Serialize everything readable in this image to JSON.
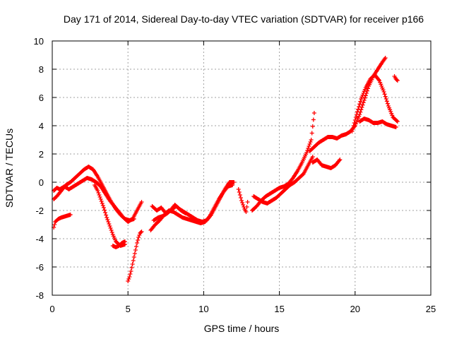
{
  "chart_data": {
    "type": "scatter",
    "title": "Day 171 of 2014, Sidereal Day-to-day VTEC variation (SDTVAR) for receiver p166",
    "xlabel": "GPS time / hours",
    "ylabel": "SDTVAR / TECUs",
    "xlim": [
      0,
      25
    ],
    "ylim": [
      -8,
      10
    ],
    "xticks": [
      "0",
      "5",
      "10",
      "15",
      "20",
      "25"
    ],
    "yticks": [
      "-8",
      "-6",
      "-4",
      "-2",
      "0",
      "2",
      "4",
      "6",
      "8",
      "10"
    ],
    "grid": true,
    "marker": "plus",
    "color": "#ff0000",
    "series": [
      {
        "x": [
          0.1,
          0.3,
          0.5,
          0.8,
          1.1,
          1.4,
          1.7,
          2.0,
          2.3,
          2.6,
          2.9,
          3.2,
          3.5,
          3.8,
          4.1,
          4.4,
          4.7,
          5.0,
          5.3,
          5.6,
          5.9
        ],
        "y": [
          -0.6,
          -0.4,
          -0.5,
          -0.3,
          -0.5,
          -0.3,
          -0.1,
          0.1,
          0.3,
          0.2,
          0.0,
          -0.3,
          -0.8,
          -1.3,
          -1.7,
          -2.1,
          -2.5,
          -2.8,
          -2.6,
          -2.0,
          -1.4
        ]
      },
      {
        "x": [
          0.1,
          0.3,
          0.6,
          0.9,
          1.2,
          1.5,
          1.8,
          2.1,
          2.4,
          2.7,
          3.0,
          3.3,
          3.6,
          3.9,
          4.2,
          4.5,
          4.8,
          5.1,
          5.4
        ],
        "y": [
          -1.2,
          -1.0,
          -0.6,
          -0.2,
          0.0,
          0.3,
          0.6,
          0.9,
          1.1,
          0.9,
          0.4,
          -0.2,
          -0.8,
          -1.4,
          -1.9,
          -2.3,
          -2.6,
          -2.7,
          -2.6
        ]
      },
      {
        "x": [
          0.1,
          0.2,
          0.4,
          0.6,
          0.9,
          1.2
        ],
        "y": [
          -3.2,
          -2.8,
          -2.6,
          -2.5,
          -2.4,
          -2.3
        ]
      },
      {
        "x": [
          2.8,
          3.0,
          3.2,
          3.4,
          3.6,
          3.8,
          4.0,
          4.2,
          4.5,
          4.8
        ],
        "y": [
          -0.2,
          -0.6,
          -1.2,
          -1.8,
          -2.5,
          -3.1,
          -3.7,
          -4.2,
          -4.5,
          -4.4
        ]
      },
      {
        "x": [
          4.0,
          4.2,
          4.4,
          4.6,
          4.8
        ],
        "y": [
          -4.5,
          -4.6,
          -4.5,
          -4.3,
          -4.2
        ]
      },
      {
        "x": [
          5.0,
          5.1,
          5.2,
          5.3,
          5.4,
          5.5,
          5.6,
          5.7,
          5.8,
          5.9
        ],
        "y": [
          -7.0,
          -6.7,
          -6.3,
          -5.8,
          -5.3,
          -4.8,
          -4.3,
          -3.9,
          -3.6,
          -3.5
        ]
      },
      {
        "x": [
          6.5,
          6.8,
          7.1,
          7.4,
          7.7,
          8.0,
          8.3,
          8.6,
          8.9,
          9.2,
          9.5,
          9.8,
          10.1,
          10.4,
          10.7,
          11.0,
          11.3,
          11.6,
          11.9
        ],
        "y": [
          -3.4,
          -3.0,
          -2.7,
          -2.3,
          -2.0,
          -2.1,
          -2.3,
          -2.5,
          -2.6,
          -2.7,
          -2.8,
          -2.9,
          -2.8,
          -2.4,
          -1.8,
          -1.2,
          -0.7,
          -0.3,
          -0.2
        ]
      },
      {
        "x": [
          6.6,
          6.9,
          7.2,
          7.5,
          7.8,
          8.1,
          8.4,
          8.7,
          9.0,
          9.3,
          9.6,
          9.9,
          10.2,
          10.5,
          10.8,
          11.1,
          11.4,
          11.7,
          12.0
        ],
        "y": [
          -1.7,
          -2.0,
          -1.8,
          -2.2,
          -2.0,
          -1.6,
          -1.9,
          -2.1,
          -2.3,
          -2.5,
          -2.7,
          -2.8,
          -2.7,
          -2.3,
          -1.7,
          -1.1,
          -0.5,
          0.0,
          0.0
        ]
      },
      {
        "x": [
          6.7,
          7.0,
          7.3,
          7.6,
          7.9,
          8.2,
          8.5,
          8.8
        ],
        "y": [
          -2.7,
          -2.5,
          -2.4,
          -2.2,
          -1.9,
          -1.7,
          -2.0,
          -2.2
        ]
      },
      {
        "x": [
          12.3,
          12.4,
          12.5,
          12.6,
          12.7,
          12.8,
          12.9
        ],
        "y": [
          -0.5,
          -0.9,
          -1.3,
          -1.6,
          -1.9,
          -2.1,
          -1.4
        ]
      },
      {
        "x": [
          13.2,
          13.5,
          13.8,
          14.1,
          14.4,
          14.7,
          15.0,
          15.3,
          15.6,
          15.9,
          16.2,
          16.5,
          16.8,
          17.1,
          17.3
        ],
        "y": [
          -2.0,
          -1.7,
          -1.3,
          -1.0,
          -0.8,
          -0.6,
          -0.4,
          -0.3,
          -0.1,
          0.3,
          0.8,
          1.4,
          2.1,
          3.0,
          4.9
        ]
      },
      {
        "x": [
          13.3,
          13.6,
          13.9,
          14.2,
          14.5,
          14.8,
          15.1,
          15.4,
          15.7,
          16.0,
          16.3,
          16.6,
          16.9,
          17.2
        ],
        "y": [
          -1.0,
          -1.2,
          -1.4,
          -1.5,
          -1.3,
          -1.1,
          -0.8,
          -0.5,
          -0.2,
          0.0,
          0.3,
          0.6,
          1.2,
          1.8
        ]
      },
      {
        "x": [
          17.0,
          17.3,
          17.6,
          17.9,
          18.2,
          18.5,
          18.8,
          19.1,
          19.4,
          19.7,
          20.0,
          20.3,
          20.6,
          20.9,
          21.2,
          21.5,
          21.8,
          22.0
        ],
        "y": [
          2.2,
          2.5,
          2.8,
          3.0,
          3.2,
          3.2,
          3.1,
          3.3,
          3.4,
          3.6,
          4.0,
          4.8,
          5.8,
          6.8,
          7.5,
          8.0,
          8.5,
          8.8
        ]
      },
      {
        "x": [
          17.2,
          17.5,
          17.8,
          18.1,
          18.4,
          18.7,
          19.0
        ],
        "y": [
          1.4,
          1.6,
          1.2,
          1.1,
          1.0,
          1.2,
          1.6
        ]
      },
      {
        "x": [
          19.8,
          20.1,
          20.4,
          20.7,
          21.0,
          21.3,
          21.6,
          21.9,
          22.2,
          22.5,
          22.8
        ],
        "y": [
          3.6,
          4.8,
          5.9,
          6.7,
          7.3,
          7.6,
          7.2,
          6.4,
          5.4,
          4.6,
          4.3
        ]
      },
      {
        "x": [
          20.3,
          20.6,
          20.9,
          21.2,
          21.5,
          21.8,
          22.1,
          22.4,
          22.7
        ],
        "y": [
          4.3,
          4.5,
          4.4,
          4.2,
          4.2,
          4.3,
          4.1,
          4.0,
          3.9
        ]
      },
      {
        "x": [
          22.6,
          22.7,
          22.8
        ],
        "y": [
          7.5,
          7.3,
          7.2
        ]
      }
    ]
  }
}
